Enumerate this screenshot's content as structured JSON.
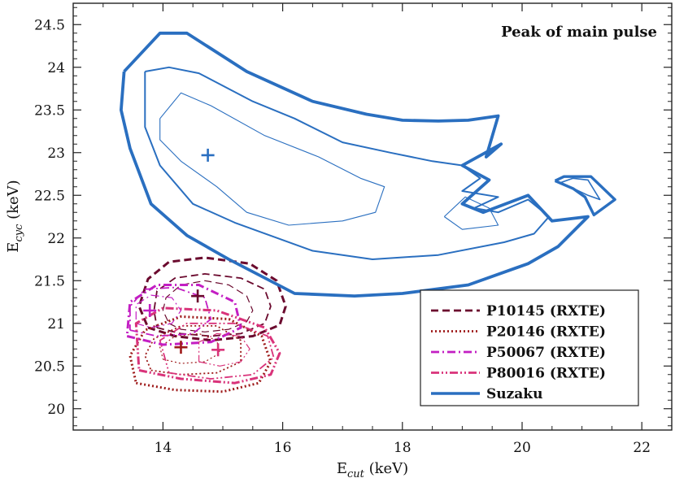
{
  "chart_data": {
    "type": "contour",
    "title": "",
    "annotation": "Peak of main pulse",
    "xlabel": {
      "main": "E",
      "sub": "cut",
      "unit": " (keV)"
    },
    "ylabel": {
      "main": "E",
      "sub": "cyc",
      "unit": " (keV)"
    },
    "xlim": [
      12.5,
      22.5
    ],
    "ylim": [
      19.75,
      24.75
    ],
    "xticks": [
      14,
      16,
      18,
      20,
      22
    ],
    "xtick_labels": [
      "14",
      "16",
      "18",
      "20",
      "22"
    ],
    "yticks": [
      20,
      20.5,
      21,
      21.5,
      22,
      22.5,
      23,
      23.5,
      24,
      24.5
    ],
    "ytick_labels": [
      "20",
      "20.5",
      "21",
      "21.5",
      "22",
      "22.5",
      "23",
      "23.5",
      "24",
      "24.5"
    ],
    "legend_position": "lower-right",
    "series": [
      {
        "name": "P10145 (RXTE)",
        "color": "#6b0a2e",
        "dash": "dashed",
        "best_fit": [
          14.58,
          21.32
        ],
        "contours": [
          [
            [
              14.1,
              21.0
            ],
            [
              14.3,
              20.93
            ],
            [
              14.7,
              20.9
            ],
            [
              15.1,
              20.93
            ],
            [
              15.4,
              21.02
            ],
            [
              15.5,
              21.15
            ],
            [
              15.4,
              21.32
            ],
            [
              15.1,
              21.45
            ],
            [
              14.7,
              21.5
            ],
            [
              14.3,
              21.45
            ],
            [
              14.05,
              21.3
            ],
            [
              14.0,
              21.15
            ],
            [
              14.1,
              21.0
            ]
          ],
          [
            [
              13.9,
              20.95
            ],
            [
              14.3,
              20.88
            ],
            [
              14.8,
              20.85
            ],
            [
              15.3,
              20.88
            ],
            [
              15.7,
              21.0
            ],
            [
              15.8,
              21.2
            ],
            [
              15.7,
              21.4
            ],
            [
              15.3,
              21.53
            ],
            [
              14.7,
              21.58
            ],
            [
              14.2,
              21.53
            ],
            [
              13.9,
              21.38
            ],
            [
              13.85,
              21.15
            ],
            [
              13.9,
              20.95
            ]
          ],
          [
            [
              13.75,
              20.95
            ],
            [
              14.2,
              20.85
            ],
            [
              14.8,
              20.8
            ],
            [
              15.5,
              20.85
            ],
            [
              15.95,
              20.98
            ],
            [
              16.05,
              21.2
            ],
            [
              15.9,
              21.5
            ],
            [
              15.45,
              21.7
            ],
            [
              14.7,
              21.77
            ],
            [
              14.1,
              21.72
            ],
            [
              13.75,
              21.52
            ],
            [
              13.6,
              21.2
            ],
            [
              13.75,
              20.95
            ]
          ]
        ]
      },
      {
        "name": "P20146 (RXTE)",
        "color": "#9e1a1a",
        "dash": "dotted",
        "best_fit": [
          14.3,
          20.72
        ],
        "contours": [
          [
            [
              14.0,
              20.58
            ],
            [
              14.3,
              20.53
            ],
            [
              14.7,
              20.55
            ],
            [
              14.95,
              20.65
            ],
            [
              14.9,
              20.8
            ],
            [
              14.6,
              20.88
            ],
            [
              14.2,
              20.85
            ],
            [
              13.95,
              20.72
            ],
            [
              14.0,
              20.58
            ]
          ],
          [
            [
              13.8,
              20.45
            ],
            [
              14.3,
              20.4
            ],
            [
              14.9,
              20.42
            ],
            [
              15.3,
              20.55
            ],
            [
              15.3,
              20.8
            ],
            [
              14.9,
              20.97
            ],
            [
              14.3,
              20.97
            ],
            [
              13.85,
              20.82
            ],
            [
              13.7,
              20.62
            ],
            [
              13.8,
              20.45
            ]
          ],
          [
            [
              13.55,
              20.3
            ],
            [
              14.2,
              20.22
            ],
            [
              15.0,
              20.2
            ],
            [
              15.6,
              20.3
            ],
            [
              15.8,
              20.55
            ],
            [
              15.65,
              20.85
            ],
            [
              15.1,
              21.05
            ],
            [
              14.3,
              21.08
            ],
            [
              13.7,
              20.92
            ],
            [
              13.45,
              20.62
            ],
            [
              13.55,
              20.3
            ]
          ]
        ]
      },
      {
        "name": "P50067 (RXTE)",
        "color": "#c31ec3",
        "dash": "dashdot",
        "best_fit": [
          13.78,
          21.15
        ],
        "contours": [
          [
            [
              13.55,
              21.0
            ],
            [
              13.8,
              20.95
            ],
            [
              14.15,
              21.0
            ],
            [
              14.3,
              21.15
            ],
            [
              14.15,
              21.3
            ],
            [
              13.8,
              21.33
            ],
            [
              13.55,
              21.22
            ],
            [
              13.55,
              21.0
            ]
          ],
          [
            [
              13.45,
              20.92
            ],
            [
              13.9,
              20.85
            ],
            [
              14.5,
              20.88
            ],
            [
              14.8,
              21.05
            ],
            [
              14.7,
              21.3
            ],
            [
              14.2,
              21.42
            ],
            [
              13.7,
              21.4
            ],
            [
              13.45,
              21.2
            ],
            [
              13.45,
              20.92
            ]
          ],
          [
            [
              13.4,
              20.85
            ],
            [
              14.0,
              20.75
            ],
            [
              14.8,
              20.78
            ],
            [
              15.3,
              20.95
            ],
            [
              15.2,
              21.25
            ],
            [
              14.6,
              21.45
            ],
            [
              13.9,
              21.45
            ],
            [
              13.45,
              21.25
            ],
            [
              13.4,
              20.85
            ]
          ]
        ]
      },
      {
        "name": "P80016 (RXTE)",
        "color": "#d9337a",
        "dash": "dashdotdot",
        "best_fit": [
          14.92,
          20.69
        ],
        "contours": [
          [
            [
              14.6,
              20.55
            ],
            [
              14.95,
              20.5
            ],
            [
              15.3,
              20.55
            ],
            [
              15.45,
              20.7
            ],
            [
              15.3,
              20.85
            ],
            [
              14.9,
              20.88
            ],
            [
              14.6,
              20.78
            ],
            [
              14.6,
              20.55
            ]
          ],
          [
            [
              14.1,
              20.42
            ],
            [
              14.8,
              20.35
            ],
            [
              15.5,
              20.4
            ],
            [
              15.85,
              20.6
            ],
            [
              15.75,
              20.85
            ],
            [
              15.2,
              21.0
            ],
            [
              14.4,
              21.0
            ],
            [
              13.95,
              20.8
            ],
            [
              14.1,
              20.42
            ]
          ],
          [
            [
              13.6,
              20.45
            ],
            [
              14.3,
              20.35
            ],
            [
              15.2,
              20.3
            ],
            [
              15.8,
              20.4
            ],
            [
              15.95,
              20.65
            ],
            [
              15.7,
              20.95
            ],
            [
              14.9,
              21.15
            ],
            [
              14.0,
              21.18
            ],
            [
              13.55,
              21.0
            ],
            [
              13.6,
              20.45
            ]
          ]
        ]
      },
      {
        "name": "Suzaku",
        "color": "#2a6fc0",
        "dash": "solid",
        "best_fit": [
          14.75,
          22.97
        ],
        "contours": [
          [
            [
              13.35,
              23.95
            ],
            [
              13.95,
              24.4
            ],
            [
              14.4,
              24.4
            ],
            [
              15.4,
              23.95
            ],
            [
              16.5,
              23.6
            ],
            [
              17.4,
              23.45
            ],
            [
              18.0,
              23.38
            ],
            [
              18.6,
              23.37
            ],
            [
              19.1,
              23.38
            ],
            [
              19.6,
              23.43
            ],
            [
              19.4,
              22.95
            ],
            [
              19.65,
              23.1
            ],
            [
              19.0,
              22.85
            ],
            [
              19.45,
              22.68
            ],
            [
              19.0,
              22.4
            ],
            [
              19.35,
              22.3
            ],
            [
              20.1,
              22.5
            ],
            [
              20.5,
              22.2
            ],
            [
              21.1,
              22.25
            ],
            [
              20.6,
              21.9
            ],
            [
              20.1,
              21.7
            ],
            [
              19.1,
              21.45
            ],
            [
              18.0,
              21.35
            ],
            [
              17.2,
              21.32
            ],
            [
              16.2,
              21.35
            ],
            [
              15.1,
              21.75
            ],
            [
              14.4,
              22.03
            ],
            [
              13.8,
              22.4
            ],
            [
              13.45,
              23.05
            ],
            [
              13.3,
              23.5
            ],
            [
              13.35,
              23.95
            ]
          ],
          [
            [
              13.7,
              23.95
            ],
            [
              14.1,
              24.0
            ],
            [
              14.6,
              23.93
            ],
            [
              15.5,
              23.6
            ],
            [
              16.2,
              23.4
            ],
            [
              17.0,
              23.12
            ],
            [
              17.8,
              23.0
            ],
            [
              18.5,
              22.9
            ],
            [
              19.0,
              22.85
            ],
            [
              19.3,
              22.7
            ],
            [
              19.0,
              22.55
            ],
            [
              19.6,
              22.48
            ],
            [
              19.2,
              22.35
            ],
            [
              19.6,
              22.3
            ],
            [
              20.1,
              22.45
            ],
            [
              20.45,
              22.25
            ],
            [
              20.2,
              22.05
            ],
            [
              19.7,
              21.95
            ],
            [
              18.6,
              21.8
            ],
            [
              17.5,
              21.75
            ],
            [
              16.5,
              21.85
            ],
            [
              15.2,
              22.18
            ],
            [
              14.5,
              22.4
            ],
            [
              13.95,
              22.85
            ],
            [
              13.7,
              23.3
            ],
            [
              13.7,
              23.95
            ]
          ],
          [
            [
              13.95,
              23.4
            ],
            [
              14.3,
              23.7
            ],
            [
              14.8,
              23.55
            ],
            [
              15.7,
              23.2
            ],
            [
              16.6,
              22.95
            ],
            [
              17.3,
              22.7
            ],
            [
              17.7,
              22.6
            ],
            [
              17.55,
              22.3
            ],
            [
              17.0,
              22.2
            ],
            [
              16.1,
              22.15
            ],
            [
              15.4,
              22.3
            ],
            [
              14.9,
              22.6
            ],
            [
              14.3,
              22.9
            ],
            [
              13.95,
              23.15
            ],
            [
              13.95,
              23.4
            ]
          ],
          [
            [
              18.7,
              22.25
            ],
            [
              19.05,
              22.48
            ],
            [
              19.45,
              22.35
            ],
            [
              19.6,
              22.15
            ],
            [
              19.0,
              22.1
            ],
            [
              18.7,
              22.25
            ]
          ]
        ]
      }
    ],
    "extra_contours": {
      "color": "#2a6fc0",
      "shapes": [
        [
          [
            20.55,
            22.67
          ],
          [
            20.7,
            22.72
          ],
          [
            21.15,
            22.72
          ],
          [
            21.55,
            22.45
          ],
          [
            21.2,
            22.27
          ],
          [
            21.05,
            22.48
          ],
          [
            20.85,
            22.58
          ],
          [
            20.55,
            22.67
          ]
        ],
        [
          [
            20.65,
            22.65
          ],
          [
            20.85,
            22.7
          ],
          [
            21.1,
            22.68
          ],
          [
            21.3,
            22.45
          ],
          [
            21.1,
            22.5
          ],
          [
            20.65,
            22.65
          ]
        ]
      ]
    }
  }
}
